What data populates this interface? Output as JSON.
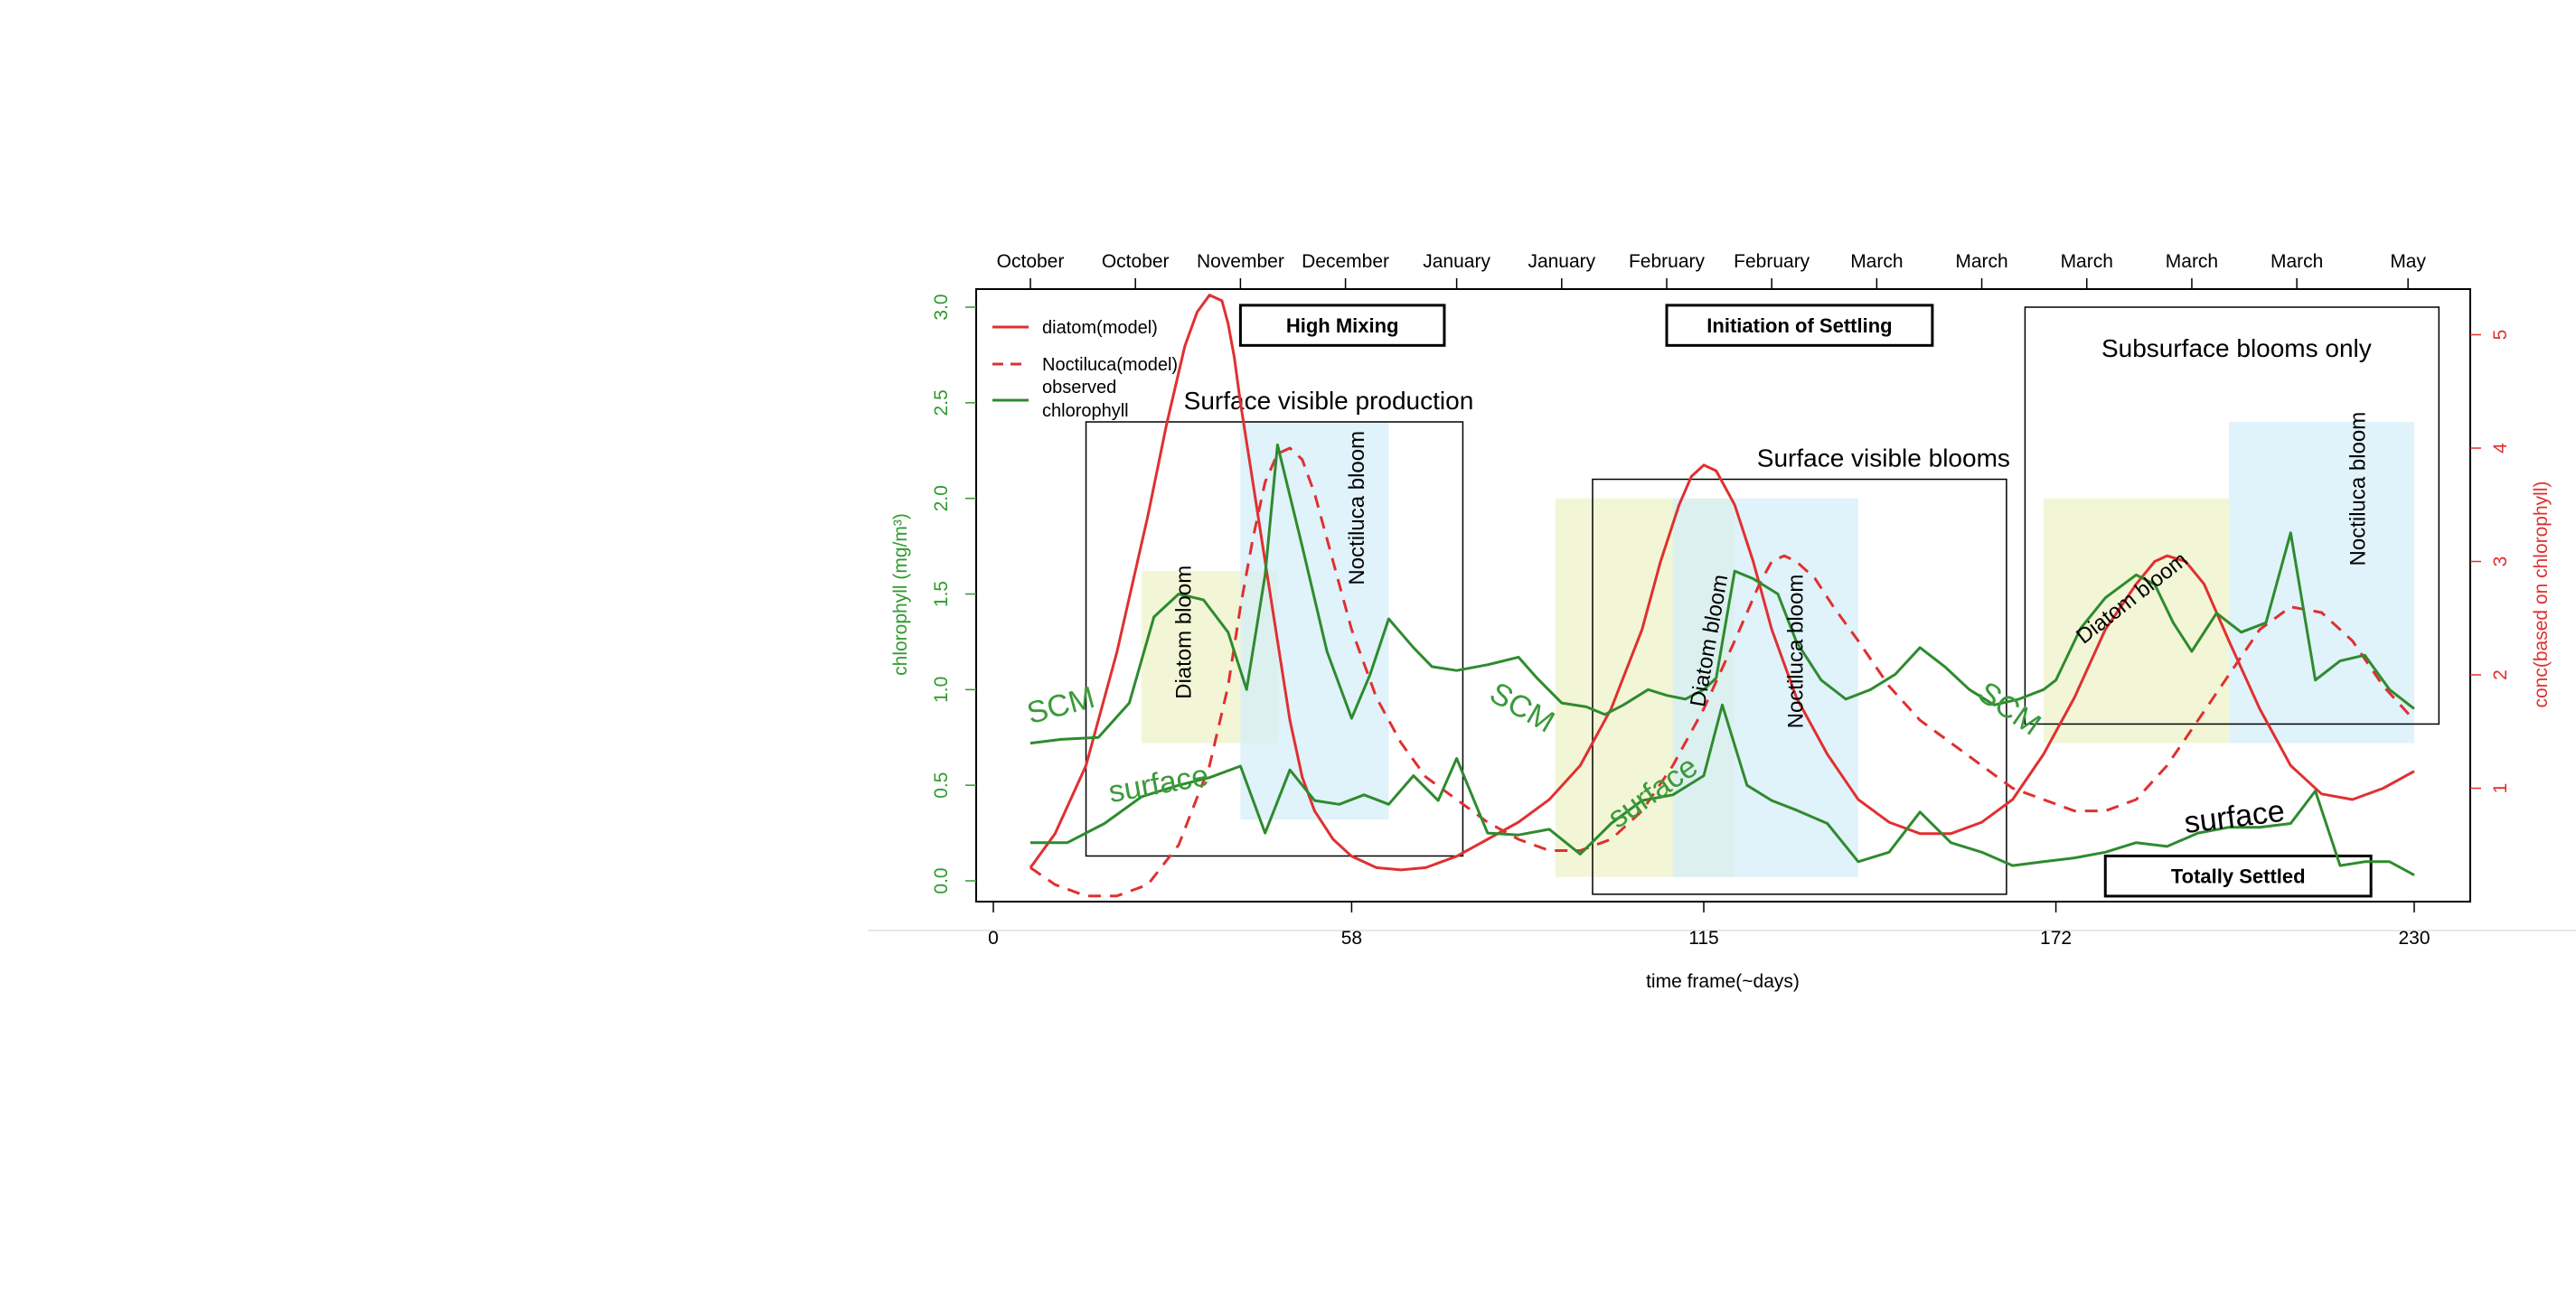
{
  "chart_data": {
    "type": "line",
    "xlabel": "time frame(~days)",
    "ylabel_left": "chlorophyll (mg/m³)",
    "ylabel_right": "conc(based on chlorophyll)",
    "xlim": [
      -3,
      238
    ],
    "ylim_left": [
      -0.1,
      3.1
    ],
    "ylim_right": [
      0,
      5.4
    ],
    "x_ticks": [
      0,
      58,
      115,
      172,
      230
    ],
    "y_ticks_left": [
      0.0,
      0.5,
      1.0,
      1.5,
      2.0,
      2.5,
      3.0
    ],
    "y_ticks_right": [
      1,
      2,
      3,
      4,
      5
    ],
    "top_months": [
      "October",
      "October",
      "November",
      "December",
      "January",
      "January",
      "February",
      "February",
      "March",
      "March",
      "March",
      "March",
      "March",
      "May"
    ],
    "top_month_x": [
      6,
      23,
      40,
      57,
      75,
      92,
      109,
      126,
      143,
      160,
      177,
      194,
      211,
      229
    ],
    "legend": {
      "position": "top-left",
      "entries": [
        {
          "label": "diatom(model)",
          "color": "#e03030",
          "dash": false
        },
        {
          "label": "Noctiluca(model)",
          "color": "#e03030",
          "dash": true
        },
        {
          "label": "observed\n chlorophyll",
          "label_line1": "observed",
          "label_line2": " chlorophyll",
          "color": "#2e8b2e",
          "dash": false
        }
      ]
    },
    "series": [
      {
        "name": "diatom(model)",
        "axis": "right",
        "color": "#e03030",
        "dash": false,
        "x": [
          6,
          10,
          15,
          20,
          25,
          28,
          31,
          33,
          35,
          37,
          38,
          39,
          40,
          42,
          44,
          46,
          48,
          50,
          52,
          55,
          58,
          62,
          66,
          70,
          75,
          80,
          85,
          90,
          95,
          100,
          105,
          108,
          111,
          113,
          115,
          117,
          118,
          120,
          123,
          126,
          130,
          135,
          140,
          145,
          150,
          155,
          160,
          165,
          170,
          175,
          180,
          185,
          188,
          190,
          193,
          196,
          200,
          205,
          210,
          215,
          220,
          225,
          230
        ],
        "y": [
          0.3,
          0.6,
          1.2,
          2.2,
          3.4,
          4.2,
          4.9,
          5.2,
          5.35,
          5.3,
          5.1,
          4.8,
          4.4,
          3.7,
          3.0,
          2.3,
          1.6,
          1.1,
          0.8,
          0.55,
          0.4,
          0.3,
          0.28,
          0.3,
          0.4,
          0.55,
          0.7,
          0.9,
          1.2,
          1.7,
          2.4,
          3.0,
          3.5,
          3.75,
          3.85,
          3.8,
          3.7,
          3.5,
          3.0,
          2.4,
          1.8,
          1.3,
          0.9,
          0.7,
          0.6,
          0.6,
          0.7,
          0.9,
          1.3,
          1.8,
          2.4,
          2.8,
          3.0,
          3.05,
          3.0,
          2.8,
          2.3,
          1.7,
          1.2,
          0.95,
          0.9,
          1.0,
          1.15
        ]
      },
      {
        "name": "Noctiluca(model)",
        "axis": "right",
        "color": "#e03030",
        "dash": true,
        "x": [
          6,
          10,
          15,
          20,
          25,
          30,
          35,
          38,
          40,
          42,
          44,
          46,
          48,
          50,
          52,
          54,
          56,
          58,
          62,
          66,
          70,
          75,
          80,
          85,
          90,
          95,
          100,
          105,
          110,
          115,
          120,
          124,
          126,
          128,
          130,
          133,
          136,
          140,
          145,
          150,
          155,
          160,
          165,
          170,
          175,
          180,
          185,
          190,
          195,
          200,
          205,
          210,
          215,
          220,
          225,
          230
        ],
        "y": [
          0.3,
          0.15,
          0.05,
          0.05,
          0.15,
          0.5,
          1.2,
          1.9,
          2.6,
          3.2,
          3.7,
          3.95,
          4.0,
          3.9,
          3.6,
          3.2,
          2.8,
          2.4,
          1.8,
          1.4,
          1.1,
          0.9,
          0.7,
          0.55,
          0.45,
          0.45,
          0.55,
          0.8,
          1.2,
          1.7,
          2.3,
          2.8,
          3.0,
          3.05,
          3.0,
          2.85,
          2.6,
          2.3,
          1.9,
          1.6,
          1.4,
          1.2,
          1.0,
          0.9,
          0.8,
          0.8,
          0.9,
          1.2,
          1.6,
          2.0,
          2.4,
          2.6,
          2.55,
          2.3,
          1.9,
          1.6
        ]
      },
      {
        "name": "observed chlorophyll (SCM)",
        "axis": "left",
        "color": "#2e8b2e",
        "dash": false,
        "x": [
          6,
          11,
          17,
          22,
          26,
          30,
          34,
          38,
          41,
          44,
          46,
          50,
          54,
          58,
          61,
          64,
          68,
          71,
          75,
          80,
          85,
          88,
          92,
          96,
          99,
          102,
          106,
          109,
          112,
          115,
          117,
          120,
          123,
          127,
          130,
          134,
          138,
          142,
          146,
          150,
          154,
          158,
          162,
          166,
          170,
          172,
          176,
          180,
          185,
          188,
          191,
          194,
          198,
          202,
          206,
          210,
          214,
          218,
          222,
          226,
          230
        ],
        "y": [
          0.72,
          0.74,
          0.75,
          0.93,
          1.38,
          1.5,
          1.47,
          1.3,
          1.0,
          1.6,
          2.28,
          1.75,
          1.2,
          0.85,
          1.08,
          1.37,
          1.22,
          1.12,
          1.1,
          1.13,
          1.17,
          1.06,
          0.93,
          0.91,
          0.87,
          0.92,
          1.0,
          0.97,
          0.95,
          1.0,
          1.06,
          1.62,
          1.58,
          1.5,
          1.25,
          1.05,
          0.95,
          1.0,
          1.08,
          1.22,
          1.12,
          1.0,
          0.92,
          0.95,
          1.0,
          1.05,
          1.32,
          1.48,
          1.6,
          1.55,
          1.35,
          1.2,
          1.4,
          1.3,
          1.35,
          1.82,
          1.05,
          1.15,
          1.18,
          1.0,
          0.9
        ]
      },
      {
        "name": "observed chlorophyll (surface)",
        "axis": "left",
        "color": "#2e8b2e",
        "dash": false,
        "x": [
          6,
          12,
          18,
          24,
          30,
          35,
          40,
          44,
          48,
          52,
          56,
          60,
          64,
          68,
          72,
          75,
          80,
          85,
          90,
          95,
          100,
          105,
          110,
          115,
          118,
          122,
          126,
          130,
          135,
          140,
          145,
          150,
          155,
          160,
          165,
          170,
          175,
          180,
          185,
          190,
          195,
          200,
          205,
          210,
          214,
          218,
          222,
          226,
          230
        ],
        "y": [
          0.2,
          0.2,
          0.3,
          0.44,
          0.5,
          0.54,
          0.6,
          0.25,
          0.58,
          0.42,
          0.4,
          0.45,
          0.4,
          0.55,
          0.42,
          0.64,
          0.25,
          0.24,
          0.27,
          0.14,
          0.3,
          0.42,
          0.45,
          0.55,
          0.92,
          0.5,
          0.42,
          0.37,
          0.3,
          0.1,
          0.15,
          0.36,
          0.2,
          0.15,
          0.08,
          0.1,
          0.12,
          0.15,
          0.2,
          0.18,
          0.25,
          0.28,
          0.28,
          0.3,
          0.47,
          0.08,
          0.1,
          0.1,
          0.03
        ]
      }
    ],
    "shaded_regions": [
      {
        "color": "#eef3c8",
        "x": [
          24,
          46
        ],
        "y": [
          0.72,
          1.62
        ],
        "axis": "left"
      },
      {
        "color": "#d6eef8",
        "x": [
          40,
          64
        ],
        "y": [
          0.32,
          2.4
        ],
        "axis": "left"
      },
      {
        "color": "#eef3c8",
        "x": [
          91,
          120
        ],
        "y": [
          0.02,
          2.0
        ],
        "axis": "left"
      },
      {
        "color": "#d6eef8",
        "x": [
          110,
          140
        ],
        "y": [
          0.02,
          2.0
        ],
        "axis": "left"
      },
      {
        "color": "#eef3c8",
        "x": [
          170,
          200
        ],
        "y": [
          0.72,
          2.0
        ],
        "axis": "left"
      },
      {
        "color": "#d6eef8",
        "x": [
          200,
          230
        ],
        "y": [
          0.72,
          2.4
        ],
        "axis": "left"
      }
    ],
    "annotation_boxes": [
      {
        "label": "Surface visible production",
        "x": [
          15,
          76
        ],
        "y": [
          0.13,
          2.4
        ]
      },
      {
        "label": "Surface visible blooms",
        "x": [
          97,
          164
        ],
        "y": [
          -0.07,
          2.1
        ]
      },
      {
        "label": "Subsurface blooms only",
        "x": [
          167,
          234
        ],
        "y": [
          0.82,
          3.0
        ]
      }
    ],
    "header_boxes": [
      {
        "label": "High Mixing",
        "x": [
          40,
          73
        ],
        "y": [
          2.8,
          3.01
        ]
      },
      {
        "label": "Initiation of Settling",
        "x": [
          109,
          152
        ],
        "y": [
          2.8,
          3.01
        ]
      },
      {
        "label": "Totally Settled",
        "x": [
          180,
          223
        ],
        "y": [
          -0.08,
          0.13
        ]
      }
    ],
    "bloom_labels": [
      {
        "text": "Diatom bloom",
        "x": 32,
        "y": 1.3,
        "rotate": -90
      },
      {
        "text": "Noctiluca bloom",
        "x": 60,
        "y": 1.95,
        "rotate": -90
      },
      {
        "text": "Diatom bloom",
        "x": 117,
        "y": 1.25,
        "rotate": -80
      },
      {
        "text": "Noctiluca bloom",
        "x": 131,
        "y": 1.2,
        "rotate": -90
      },
      {
        "text": "Diatom bloom",
        "x": 185,
        "y": 1.45,
        "rotate": -38
      },
      {
        "text": "Noctiluca bloom",
        "x": 222,
        "y": 2.05,
        "rotate": -90
      }
    ],
    "green_annotations": [
      {
        "text": "SCM",
        "x": 6,
        "y": 0.82,
        "rotate": -15
      },
      {
        "text": "surface",
        "x": 19,
        "y": 0.41,
        "rotate": -10
      },
      {
        "text": "SCM",
        "x": 80,
        "y": 0.95,
        "rotate": 30
      },
      {
        "text": "surface",
        "x": 101,
        "y": 0.27,
        "rotate": -35
      },
      {
        "text": "SCM",
        "x": 159,
        "y": 0.96,
        "rotate": 35
      }
    ],
    "black_annotations": [
      {
        "text": "surface",
        "x": 193,
        "y": 0.25,
        "rotate": -7
      }
    ]
  }
}
